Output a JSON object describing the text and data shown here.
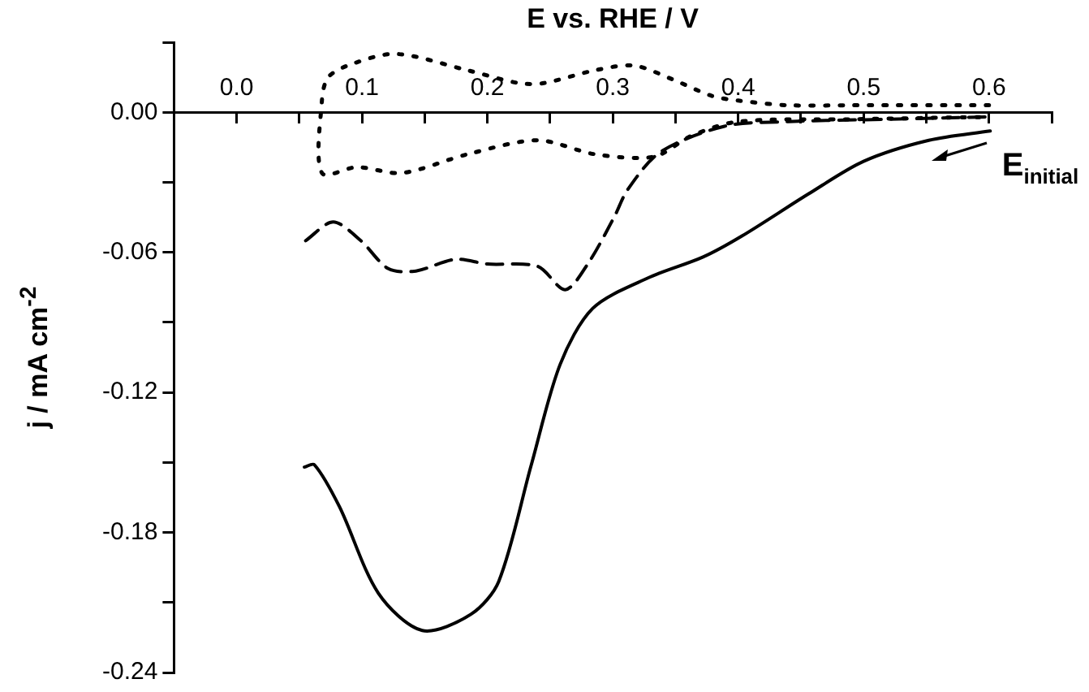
{
  "chart_data": {
    "type": "line",
    "xlabel": "E vs. RHE / V",
    "ylabel": "j / mA cm$^{-2}$",
    "xlim": [
      -0.05,
      0.65
    ],
    "xticks": [
      {
        "value": -0.05,
        "label": null
      },
      {
        "value": 0,
        "label": "0.0"
      },
      {
        "value": 0.05,
        "label": null
      },
      0.1,
      {
        "value": 0.15,
        "label": null
      },
      0.2,
      {
        "value": 0.25,
        "label": null
      },
      0.3,
      {
        "value": 0.35,
        "label": null
      },
      0.4,
      {
        "value": 0.45,
        "label": null
      },
      0.5,
      {
        "value": 0.55,
        "label": null
      },
      0.6,
      {
        "value": 0.65,
        "label": null
      }
    ],
    "ylim": [
      -0.24,
      0.03
    ],
    "yticks": [
      -0.24,
      {
        "value": -0.21,
        "label": null
      },
      -0.18,
      {
        "value": -0.15,
        "label": null
      },
      -0.12,
      {
        "value": -0.09,
        "label": null
      },
      -0.06,
      {
        "value": -0.03,
        "label": null
      },
      {
        "value": 0,
        "label": "0.00"
      },
      {
        "value": 0.03,
        "label": null
      }
    ],
    "grid": false,
    "legend": false,
    "marker": "none",
    "series": [
      {
        "color": "#000000",
        "line_style": "solid",
        "x": [
          0.054,
          0.062,
          0.082,
          0.113,
          0.148,
          0.187,
          0.209,
          0.235,
          0.258,
          0.284,
          0.328,
          0.372,
          0.403,
          0.456,
          0.5,
          0.552,
          0.601
        ],
        "values": [
          -0.152,
          -0.151,
          -0.169,
          -0.206,
          -0.222,
          -0.215,
          -0.201,
          -0.151,
          -0.108,
          -0.084,
          -0.071,
          -0.062,
          -0.053,
          -0.035,
          -0.021,
          -0.012,
          -0.008
        ]
      },
      {
        "color": "#000000",
        "line_style": "dashed",
        "x": [
          0.055,
          0.077,
          0.099,
          0.121,
          0.143,
          0.174,
          0.2,
          0.24,
          0.262,
          0.28,
          0.301,
          0.312,
          0.338,
          0.389,
          0.44,
          0.518,
          0.6
        ],
        "values": [
          -0.055,
          -0.047,
          -0.055,
          -0.067,
          -0.068,
          -0.063,
          -0.065,
          -0.066,
          -0.076,
          -0.065,
          -0.045,
          -0.033,
          -0.017,
          -0.006,
          -0.004,
          -0.003,
          -0.002
        ]
      },
      {
        "color": "#000000",
        "line_style": "dotted",
        "x": [
          0.6,
          0.492,
          0.44,
          0.4,
          0.379,
          0.348,
          0.317,
          0.286,
          0.245,
          0.225,
          0.184,
          0.127,
          0.091,
          0.073,
          0.068,
          0.068,
          0.096,
          0.132,
          0.184,
          0.24,
          0.286,
          0.333,
          0.363,
          0.4,
          0.49,
          0.6
        ],
        "values": [
          0.003,
          0.003,
          0.003,
          0.005,
          0.007,
          0.014,
          0.02,
          0.018,
          0.0125,
          0.0125,
          0.018,
          0.025,
          0.0205,
          0.015,
          0.005,
          -0.026,
          -0.0235,
          -0.026,
          -0.018,
          -0.012,
          -0.018,
          -0.019,
          -0.01,
          -0.004,
          -0.003,
          -0.002
        ]
      }
    ],
    "annotations": [
      {
        "text": "E$_{initial}$",
        "x": 0.6,
        "y": -0.008
      }
    ]
  }
}
